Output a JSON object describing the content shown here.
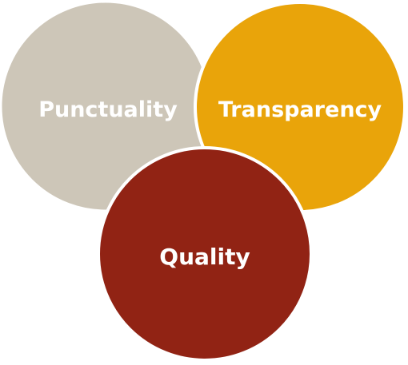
{
  "diagram": {
    "circles": [
      {
        "id": "punctuality",
        "label": "Punctuality",
        "color": "#cdc6b8"
      },
      {
        "id": "transparency",
        "label": "Transparency",
        "color": "#e9a40a"
      },
      {
        "id": "quality",
        "label": "Quality",
        "color": "#912314"
      }
    ],
    "border_color": "#ffffff"
  }
}
